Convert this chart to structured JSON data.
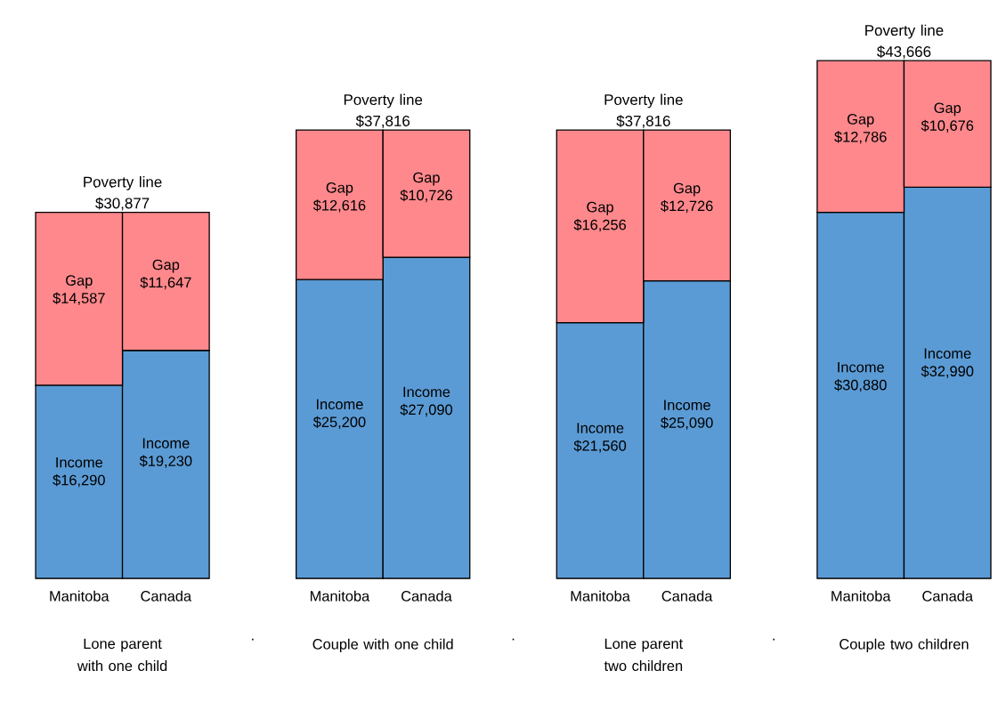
{
  "chart_data": {
    "type": "bar",
    "stacked": true,
    "tick_labels": "x",
    "categories": [
      "Manitoba",
      "Canada",
      null,
      "Manitoba",
      "Canada",
      null,
      "Manitoba",
      "Canada",
      null,
      "Manitoba",
      "Canada"
    ],
    "series": [
      {
        "name": "Income",
        "color": "#5b9bd5",
        "values": [
          16290,
          19230,
          null,
          25200,
          27090,
          null,
          21560,
          25090,
          null,
          30880,
          32990
        ],
        "value_labels": [
          "$16,290",
          "$19,230",
          null,
          "$25,200",
          "$27,090",
          null,
          "$21,560",
          "$25,090",
          null,
          "$30,880",
          "$32,990"
        ]
      },
      {
        "name": "Gap",
        "color": "#ff888c",
        "values": [
          14587,
          11647,
          null,
          12616,
          10726,
          null,
          16256,
          12726,
          null,
          12786,
          10676
        ],
        "value_labels": [
          "$14,587",
          "$11,647",
          null,
          "$12,616",
          "$10,726",
          null,
          "$16,256",
          "$12,726",
          null,
          "$12,786",
          "$10,676"
        ]
      }
    ],
    "totals": [
      "Poverty line $30,877",
      null,
      null,
      "Poverty line $37,816",
      null,
      null,
      "Poverty line $37,816",
      null,
      null,
      "Poverty line $43,666",
      null
    ],
    "annotations": [
      "Lone parent with one child",
      ".",
      "Couple with one child",
      ".",
      "Lone parent two children",
      ".",
      "Couple two children"
    ]
  }
}
